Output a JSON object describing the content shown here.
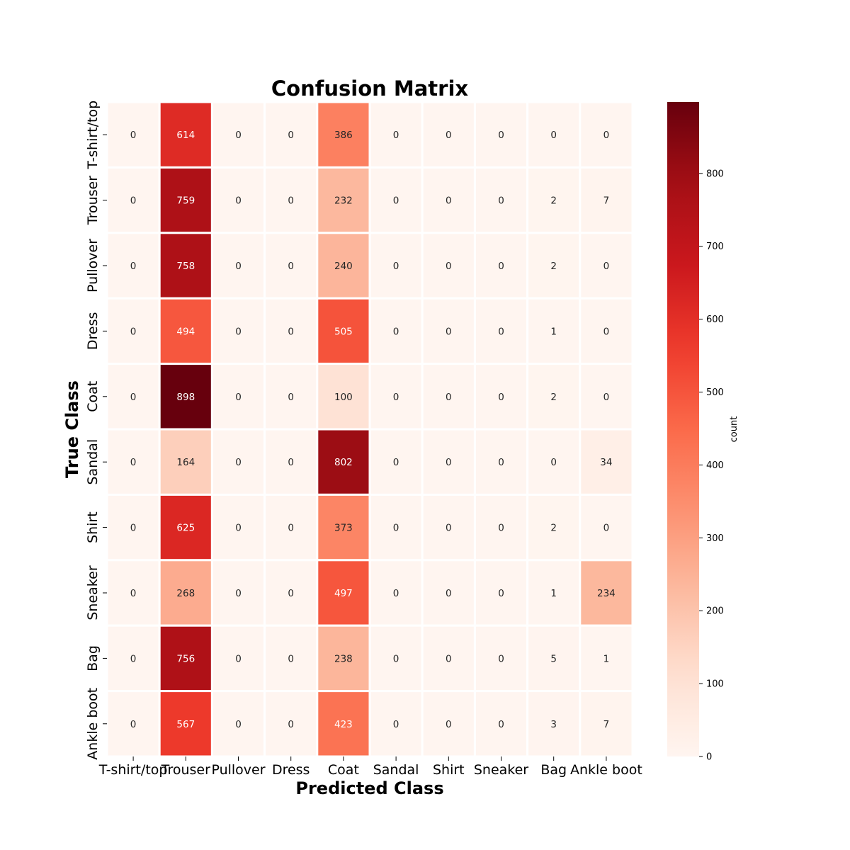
{
  "chart_data": {
    "type": "heatmap",
    "title": "Confusion Matrix",
    "xlabel": "Predicted Class",
    "ylabel": "True Class",
    "x_categories": [
      "T-shirt/top",
      "Trouser",
      "Pullover",
      "Dress",
      "Coat",
      "Sandal",
      "Shirt",
      "Sneaker",
      "Bag",
      "Ankle boot"
    ],
    "y_categories": [
      "T-shirt/top",
      "Trouser",
      "Pullover",
      "Dress",
      "Coat",
      "Sandal",
      "Shirt",
      "Sneaker",
      "Bag",
      "Ankle boot"
    ],
    "values": [
      [
        0,
        614,
        0,
        0,
        386,
        0,
        0,
        0,
        0,
        0
      ],
      [
        0,
        759,
        0,
        0,
        232,
        0,
        0,
        0,
        2,
        7
      ],
      [
        0,
        758,
        0,
        0,
        240,
        0,
        0,
        0,
        2,
        0
      ],
      [
        0,
        494,
        0,
        0,
        505,
        0,
        0,
        0,
        1,
        0
      ],
      [
        0,
        898,
        0,
        0,
        100,
        0,
        0,
        0,
        2,
        0
      ],
      [
        0,
        164,
        0,
        0,
        802,
        0,
        0,
        0,
        0,
        34
      ],
      [
        0,
        625,
        0,
        0,
        373,
        0,
        0,
        0,
        2,
        0
      ],
      [
        0,
        268,
        0,
        0,
        497,
        0,
        0,
        0,
        1,
        234
      ],
      [
        0,
        756,
        0,
        0,
        238,
        0,
        0,
        0,
        5,
        1
      ],
      [
        0,
        567,
        0,
        0,
        423,
        0,
        0,
        0,
        3,
        7
      ]
    ],
    "colormap": "Reds",
    "colorbar": {
      "label": "count",
      "range": [
        0,
        898
      ],
      "ticks": [
        0,
        100,
        200,
        300,
        400,
        500,
        600,
        700,
        800
      ]
    }
  }
}
